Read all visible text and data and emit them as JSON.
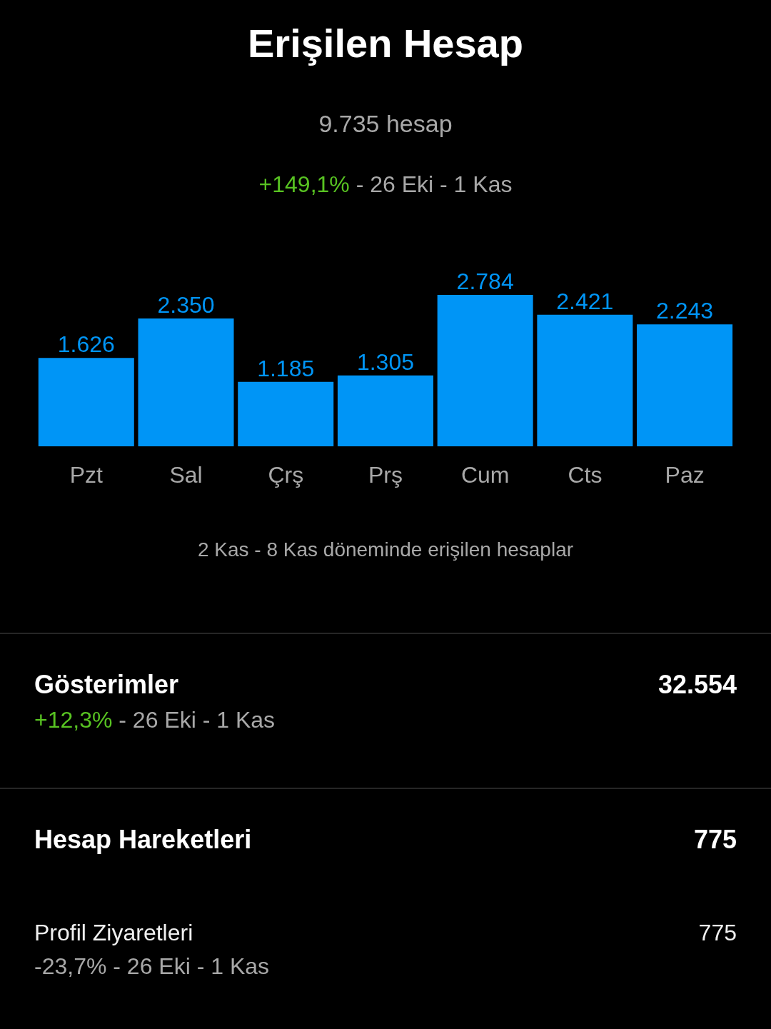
{
  "chart_data": {
    "type": "bar",
    "title": "Erişilen Hesap",
    "subtitle": "9.735 hesap",
    "categories": [
      "Pzt",
      "Sal",
      "Çrş",
      "Prş",
      "Cum",
      "Cts",
      "Paz"
    ],
    "values": [
      1626,
      2350,
      1185,
      1305,
      2784,
      2421,
      2243
    ],
    "value_labels": [
      "1.626",
      "2.350",
      "1.185",
      "1.305",
      "2.784",
      "2.421",
      "2.243"
    ],
    "color": "#0095f6",
    "annotations": [
      "+149,1% - 26 Eki - 1 Kas",
      "2 Kas - 8 Kas döneminde erişilen hesaplar",
      "Gösterimler",
      "32.554",
      "+12,3% - 26 Eki - 1 Kas",
      "Hesap Hareketleri",
      "775",
      "Profil Ziyaretleri",
      "775",
      "-23,7% - 26 Eki - 1 Kas"
    ]
  }
}
